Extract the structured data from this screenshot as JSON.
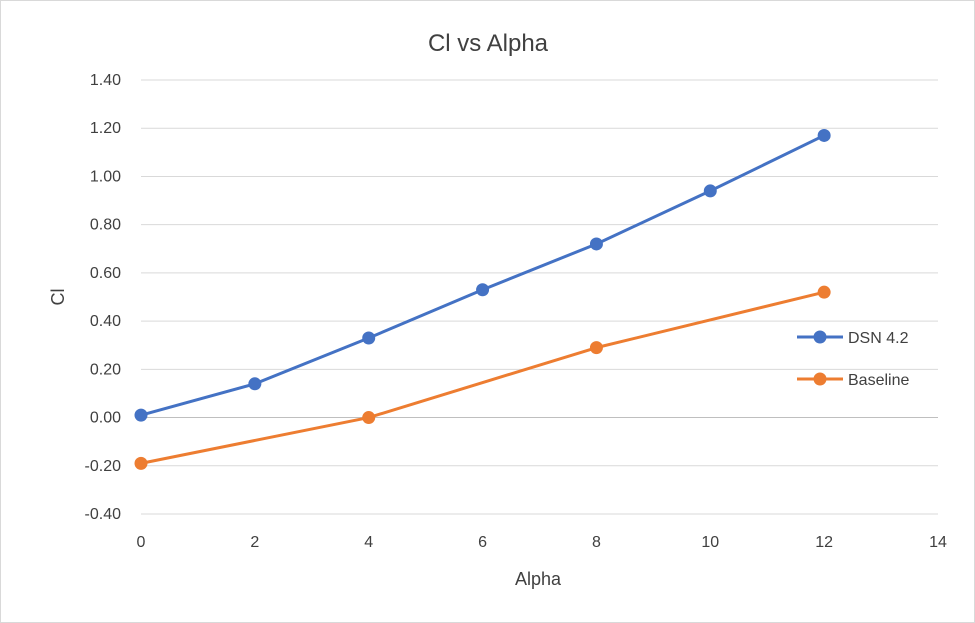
{
  "chart_data": {
    "type": "line",
    "title": "Cl vs Alpha",
    "xlabel": "Alpha",
    "ylabel": "Cl",
    "xlim": [
      0,
      14
    ],
    "ylim": [
      -0.4,
      1.4
    ],
    "x_ticks": [
      "0",
      "2",
      "4",
      "6",
      "8",
      "10",
      "12",
      "14"
    ],
    "y_ticks": [
      "-0.40",
      "-0.20",
      "0.00",
      "0.20",
      "0.40",
      "0.60",
      "0.80",
      "1.00",
      "1.20",
      "1.40"
    ],
    "grid": true,
    "legend_position": "right",
    "series": [
      {
        "name": "DSN 4.2",
        "color": "#4472c4",
        "x": [
          0,
          2,
          4,
          6,
          8,
          10,
          12
        ],
        "y": [
          0.01,
          0.14,
          0.33,
          0.53,
          0.72,
          0.94,
          1.17
        ]
      },
      {
        "name": "Baseline",
        "color": "#ed7d31",
        "x": [
          0,
          4,
          8,
          12
        ],
        "y": [
          -0.19,
          0.0,
          0.29,
          0.52
        ]
      }
    ]
  }
}
